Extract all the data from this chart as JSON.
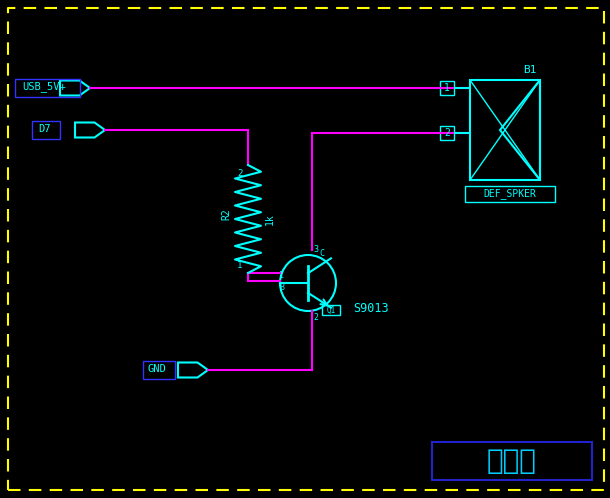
{
  "bg_color": "#000000",
  "border_color": "#ffff00",
  "cyan": "#00ffff",
  "magenta": "#ff00ff",
  "blue_box": "#0000cc",
  "title_text": "蜂鸣器",
  "title_color": "#00ccff",
  "usb_label": "USB_5V+",
  "d7_label": "D7",
  "gnd_label": "GND",
  "r2_label": "R2",
  "r2_val": "1k",
  "q1_label": "Q1",
  "s9013_label": "S9013",
  "b1_label": "B1",
  "spker_label": "DEF_SPKER"
}
